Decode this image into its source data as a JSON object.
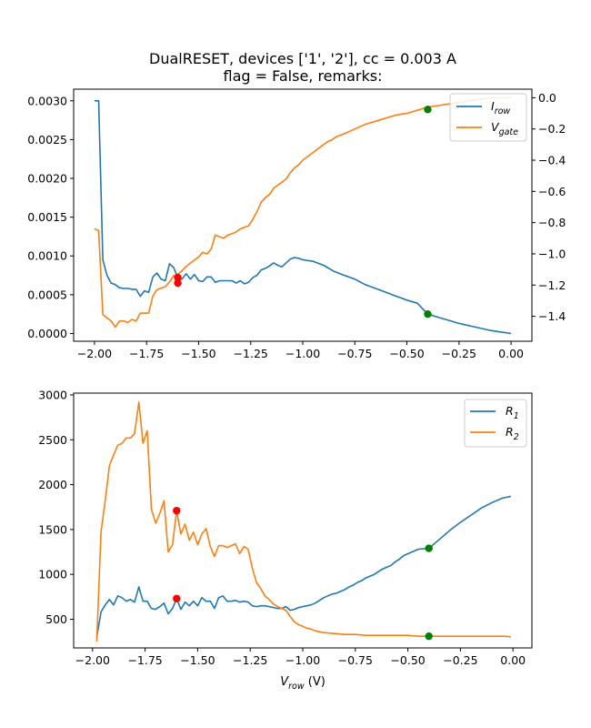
{
  "figure": {
    "title_line1": "DualRESET, devices ['1', '2'], cc = 0.003 A",
    "title_line2": "flag = False, remarks:"
  },
  "chart_data": [
    {
      "type": "line",
      "panel": "top",
      "x_ticks": [
        -2.0,
        -1.75,
        -1.5,
        -1.25,
        -1.0,
        -0.75,
        -0.5,
        -0.25,
        0.0
      ],
      "x_tick_labels": [
        "−2.00",
        "−1.75",
        "−1.50",
        "−1.25",
        "−1.00",
        "−0.75",
        "−0.50",
        "−0.25",
        "0.00"
      ],
      "xlim": [
        -2.1,
        0.1
      ],
      "ylim_left": [
        -0.0001,
        0.00315
      ],
      "y_ticks_left": [
        0,
        0.0005,
        0.001,
        0.0015,
        0.002,
        0.0025,
        0.003
      ],
      "y_tick_labels_left": [
        "0.0000",
        "0.0005",
        "0.0010",
        "0.0015",
        "0.0020",
        "0.0025",
        "0.0030"
      ],
      "ylim_right": [
        -1.56,
        0.055
      ],
      "y_ticks_right": [
        -1.4,
        -1.2,
        -1.0,
        -0.8,
        -0.6,
        -0.4,
        -0.2,
        0.0
      ],
      "y_tick_labels_right": [
        "−1.4",
        "−1.2",
        "−1.0",
        "−0.8",
        "−0.6",
        "−0.4",
        "−0.2",
        "0.0"
      ],
      "legend": "top-right",
      "series": [
        {
          "name": "I_row",
          "legend_main": "I",
          "legend_sub": "row",
          "color": "#1f77b4",
          "axis": "left",
          "x": [
            -2.0,
            -1.98,
            -1.96,
            -1.94,
            -1.92,
            -1.9,
            -1.88,
            -1.86,
            -1.84,
            -1.82,
            -1.8,
            -1.78,
            -1.76,
            -1.74,
            -1.72,
            -1.7,
            -1.68,
            -1.66,
            -1.64,
            -1.62,
            -1.6,
            -1.58,
            -1.56,
            -1.54,
            -1.52,
            -1.5,
            -1.48,
            -1.46,
            -1.44,
            -1.42,
            -1.4,
            -1.38,
            -1.36,
            -1.34,
            -1.32,
            -1.3,
            -1.28,
            -1.26,
            -1.24,
            -1.22,
            -1.2,
            -1.18,
            -1.16,
            -1.14,
            -1.12,
            -1.1,
            -1.08,
            -1.06,
            -1.04,
            -1.02,
            -1.0,
            -0.95,
            -0.9,
            -0.85,
            -0.8,
            -0.75,
            -0.7,
            -0.65,
            -0.6,
            -0.55,
            -0.5,
            -0.45,
            -0.4,
            -0.35,
            -0.3,
            -0.25,
            -0.2,
            -0.15,
            -0.1,
            -0.05,
            0.0
          ],
          "values": [
            0.003,
            0.003,
            0.00095,
            0.00075,
            0.00065,
            0.00063,
            0.00059,
            0.00058,
            0.00058,
            0.00057,
            0.00057,
            0.00048,
            0.00055,
            0.00053,
            0.00073,
            0.00078,
            0.0007,
            0.00068,
            0.0009,
            0.00085,
            0.00072,
            0.0007,
            0.00077,
            0.0007,
            0.00076,
            0.00068,
            0.00067,
            0.00073,
            0.00073,
            0.00066,
            0.00068,
            0.00068,
            0.00068,
            0.00068,
            0.00065,
            0.00068,
            0.00064,
            0.00066,
            0.00072,
            0.00075,
            0.00082,
            0.00084,
            0.00087,
            0.00091,
            0.00088,
            0.00086,
            0.00091,
            0.00096,
            0.00098,
            0.00097,
            0.00095,
            0.00093,
            0.00088,
            0.0008,
            0.00075,
            0.0007,
            0.00063,
            0.00058,
            0.00053,
            0.00048,
            0.00043,
            0.00039,
            0.00025,
            0.00021,
            0.00017,
            0.00013,
            0.0001,
            7e-05,
            4e-05,
            2e-05,
            0.0
          ]
        },
        {
          "name": "V_gate",
          "legend_main": "V",
          "legend_sub": "gate",
          "color": "#ff7f0e",
          "axis": "right",
          "x": [
            -2.0,
            -1.98,
            -1.96,
            -1.94,
            -1.92,
            -1.9,
            -1.88,
            -1.86,
            -1.84,
            -1.82,
            -1.8,
            -1.78,
            -1.76,
            -1.74,
            -1.72,
            -1.7,
            -1.68,
            -1.66,
            -1.64,
            -1.62,
            -1.6,
            -1.58,
            -1.56,
            -1.54,
            -1.52,
            -1.5,
            -1.48,
            -1.46,
            -1.44,
            -1.42,
            -1.4,
            -1.38,
            -1.36,
            -1.34,
            -1.32,
            -1.3,
            -1.28,
            -1.26,
            -1.24,
            -1.22,
            -1.2,
            -1.18,
            -1.16,
            -1.14,
            -1.12,
            -1.1,
            -1.08,
            -1.06,
            -1.04,
            -1.02,
            -1.0,
            -0.98,
            -0.96,
            -0.94,
            -0.92,
            -0.9,
            -0.88,
            -0.86,
            -0.84,
            -0.82,
            -0.8,
            -0.75,
            -0.7,
            -0.65,
            -0.6,
            -0.55,
            -0.5,
            -0.45,
            -0.4,
            -0.35,
            -0.3,
            -0.25,
            -0.2,
            -0.15,
            -0.1,
            -0.05,
            0.0
          ],
          "values": [
            -0.84,
            -0.85,
            -1.39,
            -1.41,
            -1.43,
            -1.47,
            -1.43,
            -1.43,
            -1.44,
            -1.42,
            -1.43,
            -1.38,
            -1.38,
            -1.38,
            -1.27,
            -1.23,
            -1.22,
            -1.21,
            -1.18,
            -1.14,
            -1.13,
            -1.11,
            -1.08,
            -1.06,
            -1.04,
            -1.02,
            -0.99,
            -1.0,
            -0.97,
            -0.88,
            -0.89,
            -0.9,
            -0.88,
            -0.87,
            -0.86,
            -0.84,
            -0.83,
            -0.82,
            -0.78,
            -0.73,
            -0.67,
            -0.64,
            -0.62,
            -0.58,
            -0.56,
            -0.54,
            -0.52,
            -0.48,
            -0.45,
            -0.43,
            -0.4,
            -0.38,
            -0.36,
            -0.34,
            -0.32,
            -0.3,
            -0.28,
            -0.27,
            -0.25,
            -0.24,
            -0.23,
            -0.2,
            -0.17,
            -0.15,
            -0.13,
            -0.11,
            -0.1,
            -0.08,
            -0.06,
            -0.05,
            -0.04,
            -0.03,
            -0.02,
            -0.01,
            0.0,
            0.0,
            0.0
          ]
        }
      ],
      "markers": [
        {
          "x": -1.6,
          "y": 0.00072,
          "axis": "left",
          "color": "#ff0000"
        },
        {
          "x": -1.6,
          "y": 0.00065,
          "axis": "left",
          "color": "#ff0000"
        },
        {
          "x": -0.4,
          "y": 0.00025,
          "axis": "left",
          "color": "#008000"
        },
        {
          "x": -0.4,
          "y": -0.075,
          "axis": "right",
          "color": "#008000"
        }
      ]
    },
    {
      "type": "line",
      "panel": "bottom",
      "xlabel_main": "V",
      "xlabel_sub": "row",
      "xlabel_unit": " (V)",
      "x_ticks": [
        -2.0,
        -1.75,
        -1.5,
        -1.25,
        -1.0,
        -0.75,
        -0.5,
        -0.25,
        0.0
      ],
      "x_tick_labels": [
        "−2.00",
        "−1.75",
        "−1.50",
        "−1.25",
        "−1.00",
        "−0.75",
        "−0.50",
        "−0.25",
        "0.00"
      ],
      "xlim": [
        -2.09,
        0.09
      ],
      "ylim": [
        180,
        3020
      ],
      "y_ticks": [
        500,
        1000,
        1500,
        2000,
        2500,
        3000
      ],
      "y_tick_labels": [
        "500",
        "1000",
        "1500",
        "2000",
        "2500",
        "3000"
      ],
      "legend": "top-right",
      "series": [
        {
          "name": "R_1",
          "legend_main": "R",
          "legend_sub": "1",
          "color": "#1f77b4",
          "x": [
            -1.98,
            -1.96,
            -1.94,
            -1.92,
            -1.9,
            -1.88,
            -1.86,
            -1.84,
            -1.82,
            -1.8,
            -1.78,
            -1.76,
            -1.74,
            -1.72,
            -1.7,
            -1.68,
            -1.66,
            -1.64,
            -1.62,
            -1.6,
            -1.58,
            -1.56,
            -1.54,
            -1.52,
            -1.5,
            -1.48,
            -1.46,
            -1.44,
            -1.42,
            -1.4,
            -1.38,
            -1.36,
            -1.34,
            -1.32,
            -1.3,
            -1.28,
            -1.26,
            -1.24,
            -1.22,
            -1.2,
            -1.18,
            -1.16,
            -1.14,
            -1.12,
            -1.1,
            -1.08,
            -1.06,
            -1.04,
            -1.02,
            -1.0,
            -0.98,
            -0.96,
            -0.94,
            -0.92,
            -0.9,
            -0.88,
            -0.86,
            -0.84,
            -0.82,
            -0.8,
            -0.78,
            -0.76,
            -0.74,
            -0.72,
            -0.7,
            -0.68,
            -0.66,
            -0.64,
            -0.62,
            -0.6,
            -0.58,
            -0.56,
            -0.54,
            -0.52,
            -0.5,
            -0.45,
            -0.4,
            -0.35,
            -0.3,
            -0.25,
            -0.2,
            -0.15,
            -0.1,
            -0.05,
            -0.01
          ],
          "values": [
            300,
            580,
            660,
            720,
            660,
            760,
            740,
            700,
            720,
            690,
            860,
            700,
            700,
            620,
            610,
            640,
            680,
            560,
            620,
            730,
            610,
            690,
            650,
            700,
            650,
            740,
            700,
            700,
            620,
            740,
            760,
            700,
            700,
            710,
            690,
            700,
            690,
            650,
            640,
            650,
            650,
            640,
            630,
            620,
            620,
            640,
            600,
            610,
            630,
            640,
            650,
            660,
            680,
            710,
            740,
            760,
            780,
            790,
            810,
            830,
            860,
            880,
            910,
            930,
            960,
            980,
            1000,
            1030,
            1060,
            1080,
            1100,
            1140,
            1170,
            1210,
            1230,
            1280,
            1290,
            1390,
            1490,
            1580,
            1660,
            1740,
            1800,
            1850,
            1870
          ]
        },
        {
          "name": "R_2",
          "legend_main": "R",
          "legend_sub": "2",
          "color": "#ff7f0e",
          "x": [
            -1.98,
            -1.96,
            -1.94,
            -1.92,
            -1.9,
            -1.88,
            -1.86,
            -1.84,
            -1.82,
            -1.8,
            -1.78,
            -1.76,
            -1.74,
            -1.72,
            -1.7,
            -1.68,
            -1.66,
            -1.64,
            -1.62,
            -1.6,
            -1.58,
            -1.56,
            -1.54,
            -1.52,
            -1.5,
            -1.48,
            -1.46,
            -1.44,
            -1.42,
            -1.4,
            -1.38,
            -1.36,
            -1.34,
            -1.32,
            -1.3,
            -1.28,
            -1.26,
            -1.24,
            -1.22,
            -1.2,
            -1.18,
            -1.16,
            -1.14,
            -1.12,
            -1.1,
            -1.08,
            -1.06,
            -1.04,
            -1.02,
            -1.0,
            -0.98,
            -0.96,
            -0.94,
            -0.92,
            -0.9,
            -0.85,
            -0.8,
            -0.75,
            -0.7,
            -0.65,
            -0.6,
            -0.55,
            -0.5,
            -0.45,
            -0.4,
            -0.35,
            -0.3,
            -0.25,
            -0.2,
            -0.15,
            -0.1,
            -0.05,
            -0.01
          ],
          "values": [
            250,
            1470,
            1820,
            2210,
            2330,
            2440,
            2460,
            2520,
            2520,
            2570,
            2920,
            2460,
            2600,
            1730,
            1570,
            1680,
            1820,
            1250,
            1330,
            1710,
            1450,
            1560,
            1380,
            1470,
            1330,
            1450,
            1510,
            1310,
            1200,
            1320,
            1320,
            1300,
            1320,
            1340,
            1230,
            1310,
            1280,
            1070,
            910,
            840,
            760,
            720,
            670,
            640,
            620,
            600,
            530,
            470,
            440,
            420,
            400,
            390,
            370,
            360,
            350,
            340,
            330,
            330,
            320,
            320,
            320,
            320,
            320,
            310,
            310,
            310,
            310,
            310,
            310,
            310,
            310,
            310,
            305
          ]
        }
      ],
      "markers": [
        {
          "x": -1.6,
          "y": 1710,
          "color": "#ff0000"
        },
        {
          "x": -1.6,
          "y": 730,
          "color": "#ff0000"
        },
        {
          "x": -0.4,
          "y": 1290,
          "color": "#008000"
        },
        {
          "x": -0.4,
          "y": 310,
          "color": "#008000"
        }
      ]
    }
  ]
}
